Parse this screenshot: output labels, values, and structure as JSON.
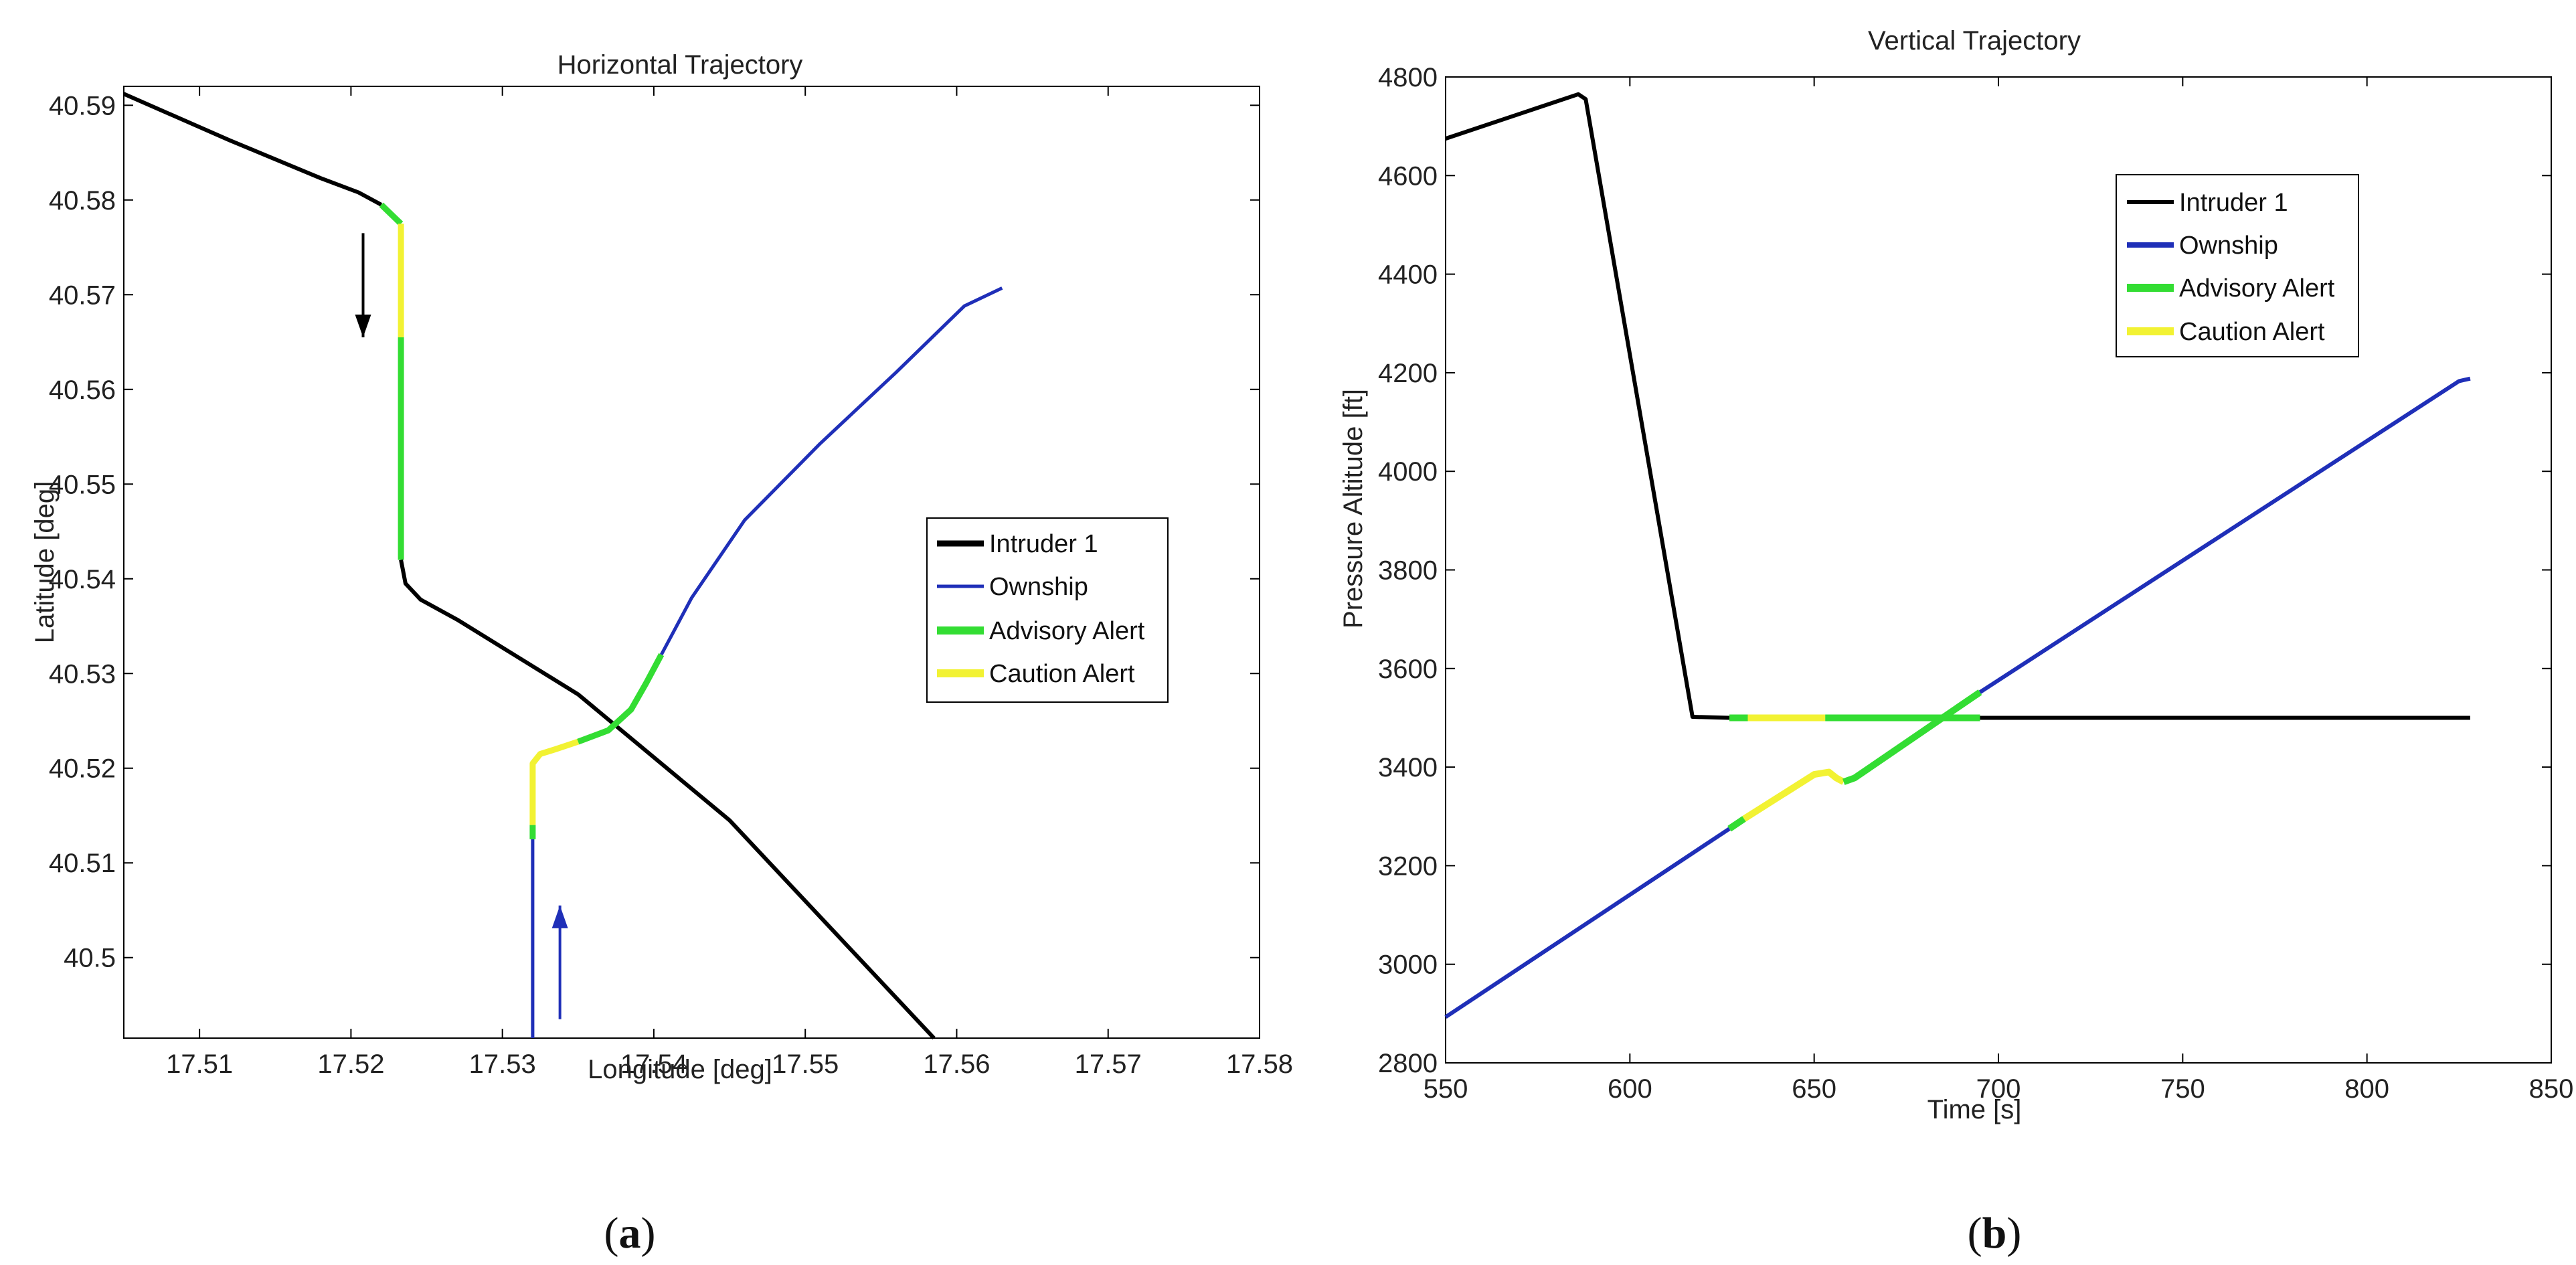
{
  "chart_data": [
    {
      "panel": "a",
      "type": "line",
      "title": "Horizontal Trajectory",
      "xlabel": "Longitude [deg]",
      "ylabel": "Latitude [deg]",
      "xlim": [
        17.505,
        17.58
      ],
      "ylim": [
        40.4915,
        40.592
      ],
      "xticks": [
        17.51,
        17.52,
        17.53,
        17.54,
        17.55,
        17.56,
        17.57,
        17.58
      ],
      "xtick_labels": [
        "17.51",
        "17.52",
        "17.53",
        "17.54",
        "17.55",
        "17.56",
        "17.57",
        "17.58"
      ],
      "yticks": [
        40.5,
        40.51,
        40.52,
        40.53,
        40.54,
        40.55,
        40.56,
        40.57,
        40.58,
        40.59
      ],
      "ytick_labels": [
        "40.5",
        "40.51",
        "40.52",
        "40.53",
        "40.54",
        "40.55",
        "40.56",
        "40.57",
        "40.58",
        "40.59"
      ],
      "legend_position": "center-right",
      "legend": [
        "Intruder 1",
        "Ownship",
        "Advisory Alert",
        "Caution Alert"
      ],
      "series": [
        {
          "name": "Intruder 1",
          "color": "#000000",
          "x": [
            17.505,
            17.512,
            17.518,
            17.5205,
            17.522
          ],
          "y": [
            40.5912,
            40.5863,
            40.5823,
            40.5808,
            40.5795
          ]
        },
        {
          "name": "Advisory Alert",
          "color": "#33dd33",
          "x": [
            17.522,
            17.5233
          ],
          "y": [
            40.5795,
            40.5775
          ]
        },
        {
          "name": "Caution Alert",
          "color": "#f2f233",
          "x": [
            17.5233,
            17.5233
          ],
          "y": [
            40.5775,
            40.5655
          ]
        },
        {
          "name": "Advisory Alert",
          "color": "#33dd33",
          "x": [
            17.5233,
            17.5233
          ],
          "y": [
            40.5655,
            40.542
          ]
        },
        {
          "name": "Intruder 1",
          "color": "#000000",
          "x": [
            17.5233,
            17.5236,
            17.5246,
            17.527,
            17.535,
            17.545,
            17.5585
          ],
          "y": [
            40.542,
            40.5395,
            40.5378,
            40.5357,
            40.5278,
            40.5145,
            40.4915
          ]
        },
        {
          "name": "Ownship",
          "color": "#1f2fb8",
          "x": [
            17.532,
            17.532
          ],
          "y": [
            40.4915,
            40.5125
          ]
        },
        {
          "name": "Advisory Alert",
          "color": "#33dd33",
          "x": [
            17.532,
            17.532
          ],
          "y": [
            40.5125,
            40.514
          ]
        },
        {
          "name": "Caution Alert",
          "color": "#f2f233",
          "x": [
            17.532,
            17.532,
            17.5325,
            17.5335,
            17.535
          ],
          "y": [
            40.514,
            40.5205,
            40.5215,
            40.522,
            40.5228
          ]
        },
        {
          "name": "Advisory Alert",
          "color": "#33dd33",
          "x": [
            17.535,
            17.537,
            17.5385,
            17.5395,
            17.5405
          ],
          "y": [
            40.5228,
            40.524,
            40.5262,
            40.529,
            40.532
          ]
        },
        {
          "name": "Ownship",
          "color": "#1f2fb8",
          "x": [
            17.5405,
            17.5425,
            17.546,
            17.551,
            17.556,
            17.5605,
            17.563
          ],
          "y": [
            40.532,
            40.538,
            40.5462,
            40.5543,
            40.5618,
            40.5688,
            40.5707
          ]
        }
      ],
      "annotations": [
        {
          "type": "arrow",
          "color": "#000000",
          "direction": "down",
          "x": 17.5208,
          "y_from": 40.5765,
          "y_to": 40.5655
        },
        {
          "type": "arrow",
          "color": "#1f2fb8",
          "direction": "up",
          "x": 17.5338,
          "y_from": 40.4935,
          "y_to": 40.5055
        }
      ]
    },
    {
      "panel": "b",
      "type": "line",
      "title": "Vertical Trajectory",
      "xlabel": "Time [s]",
      "ylabel": "Pressure Altitude [ft]",
      "xlim": [
        550,
        850
      ],
      "ylim": [
        2800,
        4800
      ],
      "xticks": [
        550,
        600,
        650,
        700,
        750,
        800,
        850
      ],
      "xtick_labels": [
        "550",
        "600",
        "650",
        "700",
        "750",
        "800",
        "850"
      ],
      "yticks": [
        2800,
        3000,
        3200,
        3400,
        3600,
        3800,
        4000,
        4200,
        4400,
        4600,
        4800
      ],
      "ytick_labels": [
        "2800",
        "3000",
        "3200",
        "3400",
        "3600",
        "3800",
        "4000",
        "4200",
        "4400",
        "4600",
        "4800"
      ],
      "legend_position": "top-right",
      "legend": [
        "Intruder 1",
        "Ownship",
        "Advisory Alert",
        "Caution Alert"
      ],
      "series": [
        {
          "name": "Intruder 1",
          "color": "#000000",
          "x": [
            550,
            586,
            588,
            617,
            627
          ],
          "y": [
            4675,
            4765,
            4755,
            3502,
            3500
          ]
        },
        {
          "name": "Advisory Alert",
          "color": "#33dd33",
          "x": [
            627,
            632
          ],
          "y": [
            3500,
            3500
          ]
        },
        {
          "name": "Caution Alert",
          "color": "#f2f233",
          "x": [
            632,
            653
          ],
          "y": [
            3500,
            3500
          ]
        },
        {
          "name": "Advisory Alert",
          "color": "#33dd33",
          "x": [
            653,
            695
          ],
          "y": [
            3500,
            3500
          ]
        },
        {
          "name": "Intruder 1",
          "color": "#000000",
          "x": [
            695,
            828
          ],
          "y": [
            3500,
            3500
          ]
        },
        {
          "name": "Ownship",
          "color": "#1f2fb8",
          "x": [
            550,
            627
          ],
          "y": [
            2893,
            3275
          ]
        },
        {
          "name": "Advisory Alert",
          "color": "#33dd33",
          "x": [
            627,
            631
          ],
          "y": [
            3275,
            3295
          ]
        },
        {
          "name": "Caution Alert",
          "color": "#f2f233",
          "x": [
            631,
            650,
            654,
            656,
            658
          ],
          "y": [
            3295,
            3385,
            3390,
            3378,
            3370
          ]
        },
        {
          "name": "Advisory Alert",
          "color": "#33dd33",
          "x": [
            658,
            661,
            695
          ],
          "y": [
            3370,
            3378,
            3552
          ]
        },
        {
          "name": "Ownship",
          "color": "#1f2fb8",
          "x": [
            695,
            825,
            828
          ],
          "y": [
            3552,
            4183,
            4188
          ]
        }
      ]
    }
  ],
  "captions": {
    "panel_a_label": "a",
    "panel_b_label": "b"
  }
}
